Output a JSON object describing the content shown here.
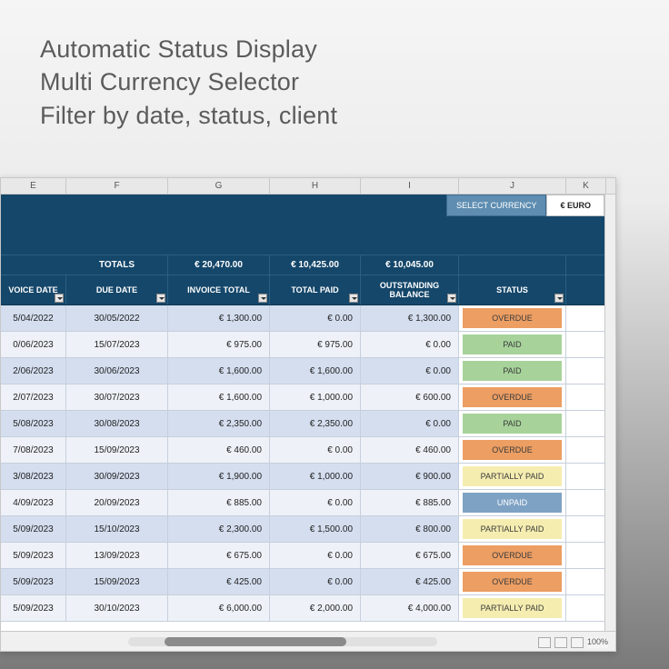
{
  "promo": {
    "line1": "Automatic Status Display",
    "line2": "Multi Currency Selector",
    "line3": "Filter by date, status, client"
  },
  "columns_letters": [
    "E",
    "F",
    "G",
    "H",
    "I",
    "J",
    "K"
  ],
  "currency": {
    "label": "SELECT CURRENCY",
    "value": "€ EURO"
  },
  "totals": {
    "label": "TOTALS",
    "invoice_total": "€ 20,470.00",
    "total_paid": "€ 10,425.00",
    "outstanding": "€ 10,045.00"
  },
  "headers": {
    "invoice_date": "VOICE DATE",
    "due_date": "DUE DATE",
    "invoice_total": "INVOICE TOTAL",
    "total_paid": "TOTAL PAID",
    "outstanding": "OUTSTANDING BALANCE",
    "status": "STATUS"
  },
  "status_colors": {
    "OVERDUE": "#ec9e63",
    "PAID": "#a7d39a",
    "PARTIALLY PAID": "#f5edb0",
    "UNPAID": "#7ea2c4"
  },
  "rows": [
    {
      "inv": "5/04/2022",
      "due": "30/05/2022",
      "tot": "€ 1,300.00",
      "paid": "€ 0.00",
      "bal": "€ 1,300.00",
      "stat": "OVERDUE"
    },
    {
      "inv": "0/06/2023",
      "due": "15/07/2023",
      "tot": "€ 975.00",
      "paid": "€ 975.00",
      "bal": "€ 0.00",
      "stat": "PAID"
    },
    {
      "inv": "2/06/2023",
      "due": "30/06/2023",
      "tot": "€ 1,600.00",
      "paid": "€ 1,600.00",
      "bal": "€ 0.00",
      "stat": "PAID"
    },
    {
      "inv": "2/07/2023",
      "due": "30/07/2023",
      "tot": "€ 1,600.00",
      "paid": "€ 1,000.00",
      "bal": "€ 600.00",
      "stat": "OVERDUE"
    },
    {
      "inv": "5/08/2023",
      "due": "30/08/2023",
      "tot": "€ 2,350.00",
      "paid": "€ 2,350.00",
      "bal": "€ 0.00",
      "stat": "PAID"
    },
    {
      "inv": "7/08/2023",
      "due": "15/09/2023",
      "tot": "€ 460.00",
      "paid": "€ 0.00",
      "bal": "€ 460.00",
      "stat": "OVERDUE"
    },
    {
      "inv": "3/08/2023",
      "due": "30/09/2023",
      "tot": "€ 1,900.00",
      "paid": "€ 1,000.00",
      "bal": "€ 900.00",
      "stat": "PARTIALLY PAID"
    },
    {
      "inv": "4/09/2023",
      "due": "20/09/2023",
      "tot": "€ 885.00",
      "paid": "€ 0.00",
      "bal": "€ 885.00",
      "stat": "UNPAID"
    },
    {
      "inv": "5/09/2023",
      "due": "15/10/2023",
      "tot": "€ 2,300.00",
      "paid": "€ 1,500.00",
      "bal": "€ 800.00",
      "stat": "PARTIALLY PAID"
    },
    {
      "inv": "5/09/2023",
      "due": "13/09/2023",
      "tot": "€ 675.00",
      "paid": "€ 0.00",
      "bal": "€ 675.00",
      "stat": "OVERDUE"
    },
    {
      "inv": "5/09/2023",
      "due": "15/09/2023",
      "tot": "€ 425.00",
      "paid": "€ 0.00",
      "bal": "€ 425.00",
      "stat": "OVERDUE"
    },
    {
      "inv": "5/09/2023",
      "due": "30/10/2023",
      "tot": "€ 6,000.00",
      "paid": "€ 2,000.00",
      "bal": "€ 4,000.00",
      "stat": "PARTIALLY PAID"
    }
  ],
  "zoom": "100%"
}
